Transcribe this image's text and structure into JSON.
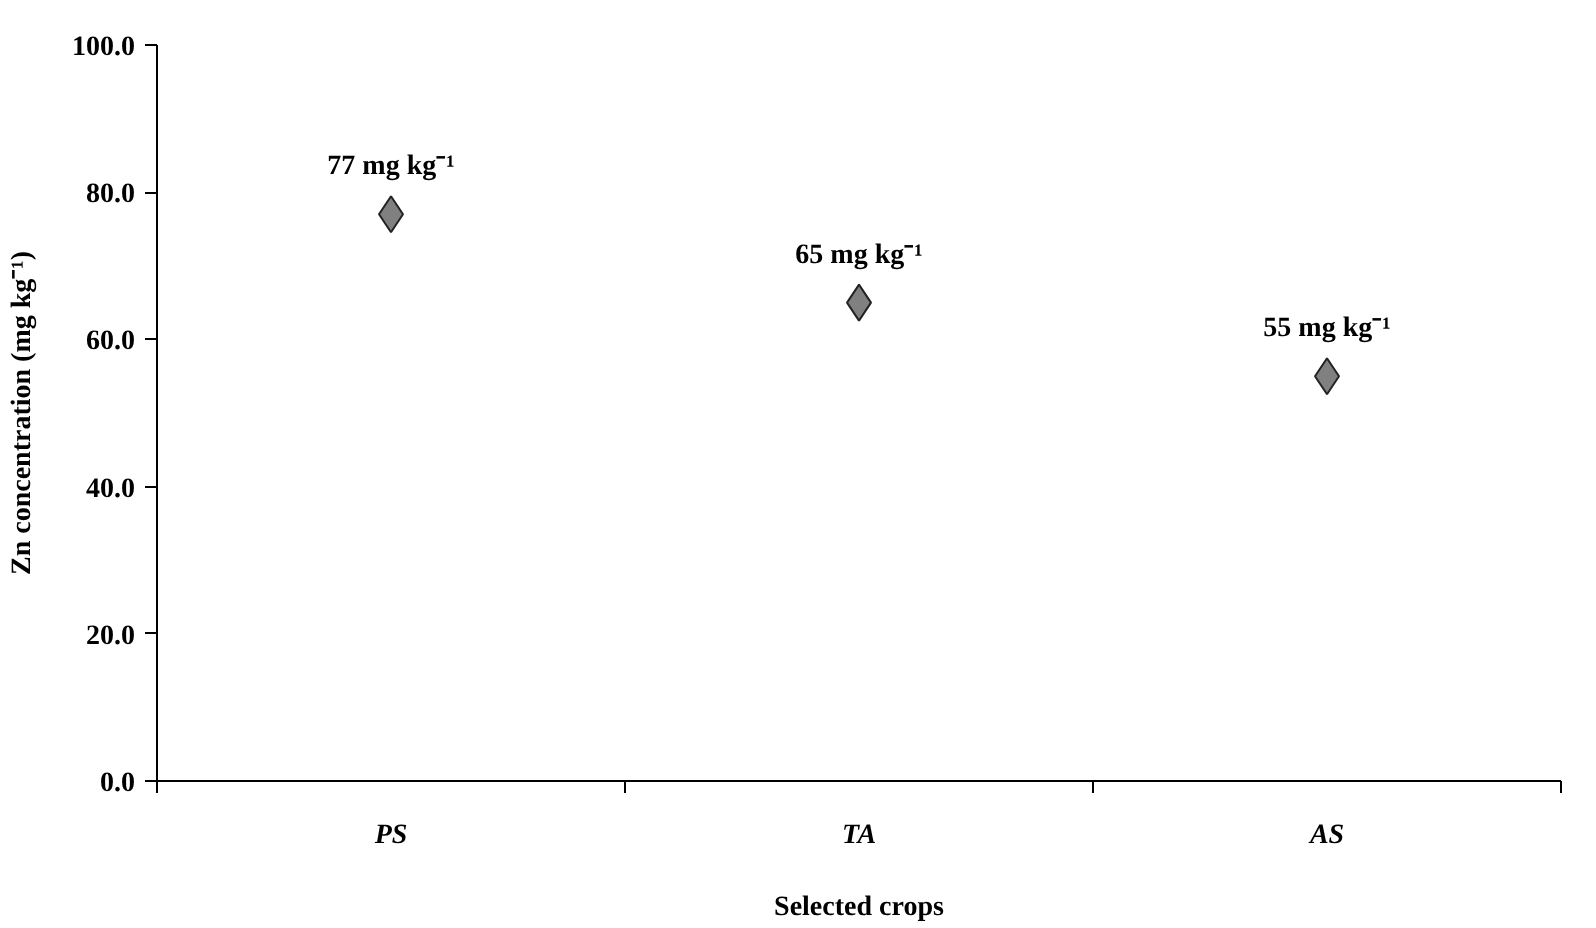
{
  "chart_data": {
    "type": "scatter",
    "xlabel": "Selected crops",
    "ylabel": "Zn concentration (mg kg⁻¹)",
    "categories": [
      "PS",
      "TA",
      "AS"
    ],
    "series": [
      {
        "color": "#808080",
        "values": [
          77,
          65,
          55
        ],
        "value_labels": [
          "77 mg kg⁻¹",
          "65 mg kg⁻¹",
          "55 mg kg⁻¹"
        ]
      }
    ],
    "ylim": [
      0,
      100
    ],
    "yticks": [
      {
        "value": 0,
        "label": "0.0"
      },
      {
        "value": 20,
        "label": "20.0"
      },
      {
        "value": 40,
        "label": "40.0"
      },
      {
        "value": 60,
        "label": "60.0"
      },
      {
        "value": 80,
        "label": "80.0"
      },
      {
        "value": 100,
        "label": "100.0"
      }
    ],
    "marker": "diamond"
  }
}
